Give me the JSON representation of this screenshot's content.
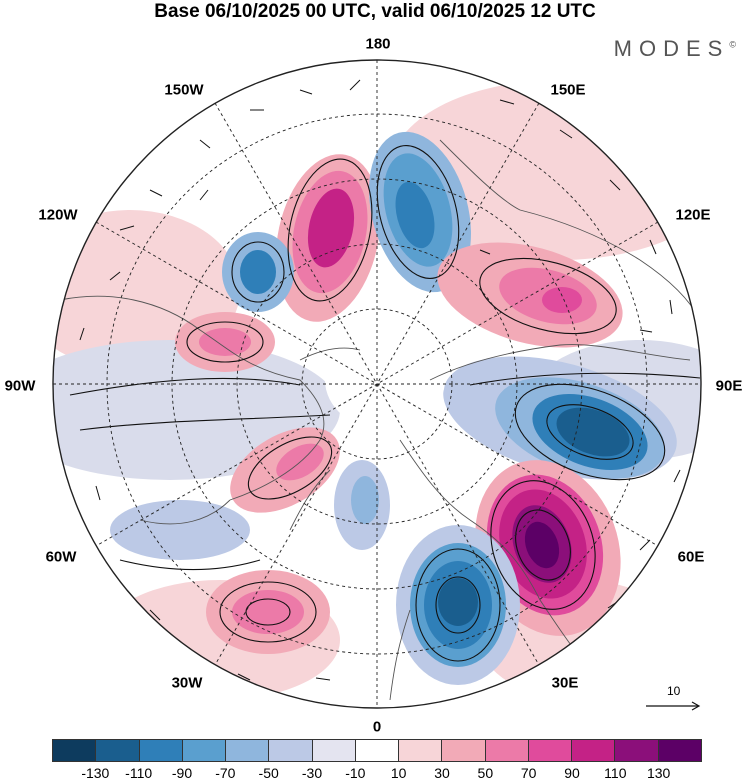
{
  "title": "Base 06/10/2025 00 UTC, valid 06/10/2025 12 UTC",
  "brand": "MODES",
  "brand_mark": "©",
  "labels": {
    "lat180": "180",
    "lon150w": "150W",
    "lon150e": "150E",
    "lon120w": "120W",
    "lon120e": "120E",
    "lon90w": "90W",
    "lon90e": "90E",
    "lon60w": "60W",
    "lon60e": "60E",
    "lon30w": "30W",
    "lon30e": "30E",
    "lon0": "0"
  },
  "reference_vector": "10",
  "colorbar": {
    "colors": [
      "#0d3b5e",
      "#1a5e8e",
      "#2f7fb8",
      "#5a9fcf",
      "#8fb6dd",
      "#bcc9e6",
      "#e4e4f0",
      "#ffffff",
      "#f7d5d8",
      "#f2aab7",
      "#ec7aa8",
      "#e04b9c",
      "#c42286",
      "#8b0f7a",
      "#5c0066"
    ],
    "tick_labels": [
      "-130",
      "-110",
      "-90",
      "-70",
      "-50",
      "-30",
      "-10",
      "10",
      "30",
      "50",
      "70",
      "90",
      "110",
      "130"
    ]
  }
}
